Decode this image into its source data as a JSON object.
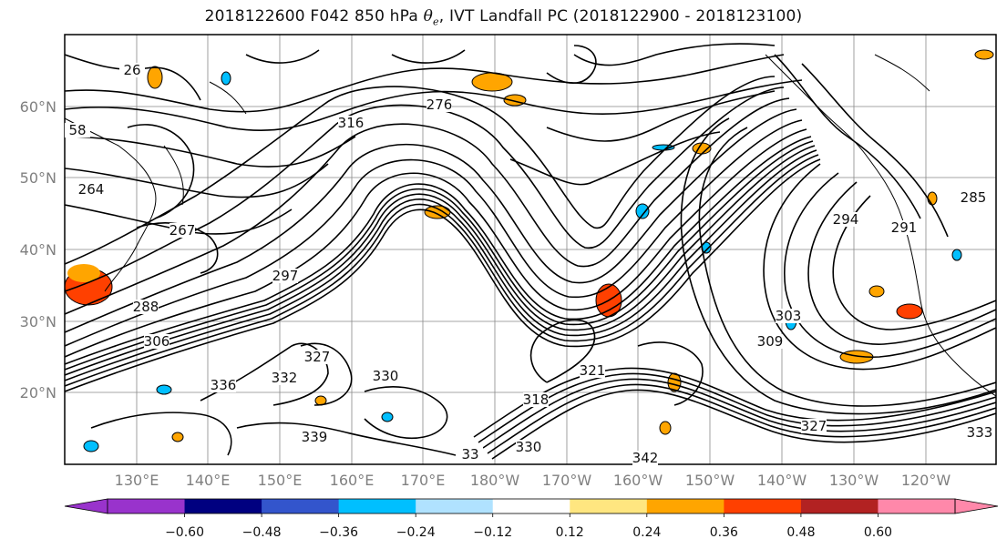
{
  "title": {
    "prefix": "2018122600 F042 850 hPa ",
    "theta_symbol": "θ",
    "theta_sub": "e",
    "suffix": ", IVT Landfall PC (2018122900 - 2018123100)"
  },
  "map": {
    "lat_labels": [
      "60°N",
      "50°N",
      "40°N",
      "30°N",
      "20°N"
    ],
    "lon_labels": [
      "130°E",
      "140°E",
      "150°E",
      "160°E",
      "170°E",
      "180°W",
      "170°W",
      "160°W",
      "150°W",
      "140°W",
      "130°W",
      "120°W"
    ],
    "contour_labels": [
      "26",
      "267",
      "297",
      "294",
      "264",
      "306",
      "327",
      "330",
      "336",
      "332",
      "339",
      "303",
      "309",
      "321",
      "318",
      "327",
      "333",
      "342",
      "330",
      "291",
      "285",
      "58",
      "288",
      "33",
      "316",
      "276"
    ]
  },
  "colorbar": {
    "tick_labels": [
      "−0.60",
      "−0.48",
      "−0.36",
      "−0.24",
      "−0.12",
      "0.12",
      "0.24",
      "0.36",
      "0.48",
      "0.60"
    ],
    "colors": [
      "#9933cc",
      "#000080",
      "#3355cc",
      "#00bfff",
      "#b0e2ff",
      "#ffffff",
      "#ffe680",
      "#ffa500",
      "#ff4000",
      "#b22222",
      "#ff88aa"
    ]
  }
}
